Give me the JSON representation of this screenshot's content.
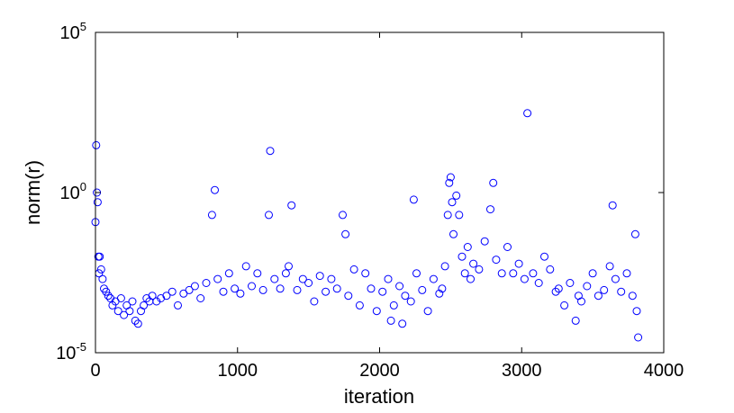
{
  "chart_data": {
    "type": "scatter",
    "title": "",
    "xlabel": "iteration",
    "ylabel": "norm(r)",
    "xlim": [
      0,
      4000
    ],
    "ylim": [
      1e-05,
      100000
    ],
    "yscale": "log",
    "grid": false,
    "marker": "circle-open",
    "marker_color": "#0000ff",
    "x_ticks": [
      0,
      1000,
      2000,
      3000,
      4000
    ],
    "x_tick_labels": [
      "0",
      "1000",
      "2000",
      "3000",
      "4000"
    ],
    "y_ticks": [
      {
        "value": 1e-05,
        "base": "10",
        "exp": "-5"
      },
      {
        "value": 1,
        "base": "10",
        "exp": "0"
      },
      {
        "value": 100000,
        "base": "10",
        "exp": "5"
      }
    ],
    "points": {
      "x": [
        0,
        5,
        10,
        15,
        20,
        25,
        30,
        40,
        50,
        60,
        75,
        90,
        105,
        120,
        140,
        160,
        180,
        200,
        220,
        240,
        260,
        280,
        300,
        320,
        340,
        360,
        380,
        400,
        430,
        460,
        500,
        540,
        580,
        620,
        660,
        700,
        740,
        780,
        820,
        840,
        860,
        900,
        940,
        980,
        1020,
        1060,
        1100,
        1140,
        1180,
        1220,
        1230,
        1260,
        1300,
        1340,
        1360,
        1380,
        1420,
        1460,
        1500,
        1540,
        1580,
        1620,
        1660,
        1700,
        1740,
        1760,
        1780,
        1820,
        1860,
        1900,
        1940,
        1980,
        2020,
        2060,
        2080,
        2100,
        2140,
        2160,
        2180,
        2220,
        2240,
        2260,
        2300,
        2340,
        2380,
        2420,
        2440,
        2460,
        2480,
        2490,
        2500,
        2510,
        2520,
        2540,
        2560,
        2580,
        2600,
        2620,
        2640,
        2660,
        2700,
        2740,
        2780,
        2800,
        2820,
        2860,
        2900,
        2940,
        2980,
        3020,
        3040,
        3080,
        3120,
        3160,
        3200,
        3240,
        3260,
        3300,
        3340,
        3380,
        3400,
        3420,
        3460,
        3500,
        3540,
        3580,
        3620,
        3640,
        3660,
        3700,
        3740,
        3780,
        3800,
        3810,
        3820
      ],
      "y": [
        0.12,
        30,
        1.0,
        0.5,
        0.01,
        0.003,
        0.01,
        0.004,
        0.002,
        0.001,
        0.0008,
        0.0006,
        0.0005,
        0.0003,
        0.0004,
        0.0002,
        0.0005,
        0.00015,
        0.0003,
        0.0002,
        0.0004,
        0.0001,
        8e-05,
        0.0002,
        0.0003,
        0.0005,
        0.0004,
        0.0006,
        0.0004,
        0.0005,
        0.0006,
        0.0008,
        0.0003,
        0.0007,
        0.0009,
        0.0012,
        0.0005,
        0.0015,
        0.2,
        1.2,
        0.002,
        0.0008,
        0.003,
        0.001,
        0.0007,
        0.005,
        0.0012,
        0.003,
        0.0009,
        0.2,
        20,
        0.002,
        0.001,
        0.003,
        0.005,
        0.4,
        0.0009,
        0.002,
        0.0015,
        0.0004,
        0.0025,
        0.0008,
        0.002,
        0.001,
        0.2,
        0.05,
        0.0006,
        0.004,
        0.0003,
        0.003,
        0.001,
        0.0002,
        0.0008,
        0.002,
        0.0001,
        0.0003,
        0.0012,
        8e-05,
        0.0006,
        0.0004,
        0.6,
        0.003,
        0.0009,
        0.0002,
        0.002,
        0.0007,
        0.001,
        0.005,
        0.2,
        2.0,
        3.0,
        0.5,
        0.05,
        0.8,
        0.2,
        0.01,
        0.003,
        0.02,
        0.002,
        0.006,
        0.004,
        0.03,
        0.3,
        2.0,
        0.008,
        0.003,
        0.02,
        0.003,
        0.006,
        0.002,
        300,
        0.003,
        0.0015,
        0.01,
        0.004,
        0.0008,
        0.001,
        0.0003,
        0.0015,
        0.0001,
        0.0006,
        0.0004,
        0.0012,
        0.003,
        0.0006,
        0.0009,
        0.005,
        0.4,
        0.002,
        0.0008,
        0.003,
        0.0006,
        0.05,
        0.0002,
        3e-05
      ]
    }
  }
}
